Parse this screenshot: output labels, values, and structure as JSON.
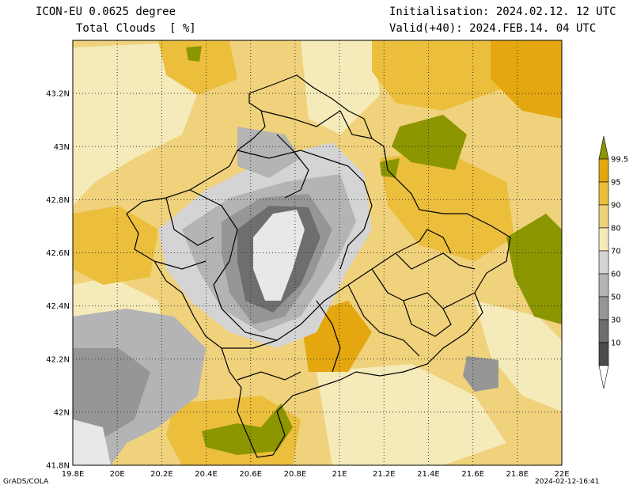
{
  "header": {
    "model": "ICON-EU 0.0625 degree",
    "variable": "Total Clouds  [ %]",
    "init": "Initialisation: 2024.02.12. 12 UTC",
    "valid": "Valid(+40): 2024.FEB.14. 04 UTC"
  },
  "axes": {
    "lat_labels": [
      "43.2N",
      "43N",
      "42.8N",
      "42.6N",
      "42.4N",
      "42.2N",
      "42N",
      "41.8N"
    ],
    "lon_labels": [
      "19.8E",
      "20E",
      "20.2E",
      "20.4E",
      "20.6E",
      "20.8E",
      "21E",
      "21.2E",
      "21.4E",
      "21.6E",
      "21.8E",
      "22E"
    ],
    "lat_range": [
      41.8,
      43.4
    ],
    "lon_range": [
      19.8,
      22.0
    ]
  },
  "legend": {
    "labels": [
      "99.5",
      "95",
      "90",
      "80",
      "70",
      "60",
      "50",
      "30",
      "10"
    ],
    "colors": [
      "#8c9600",
      "#e4a70f",
      "#ebbe3c",
      "#f0d27d",
      "#f5ebba",
      "#d4d4d4",
      "#b4b4b4",
      "#969696",
      "#6e6e6e",
      "#4b4b4b",
      "#ffffff"
    ]
  },
  "palette": {
    "c_gt995": "#8c9600",
    "c_95": "#e4a70f",
    "c_90": "#ebbe3c",
    "c_80": "#f0d27d",
    "c_70": "#f5ebba",
    "c_60": "#d4d4d4",
    "c_50": "#b4b4b4",
    "c_30": "#969696",
    "c_10": "#6e6e6e",
    "c_lt10": "#4b4b4b",
    "c_clear": "#e8e8e8"
  },
  "footer": {
    "left": "GrADS/COLA",
    "right": "2024-02-12-16:41"
  }
}
